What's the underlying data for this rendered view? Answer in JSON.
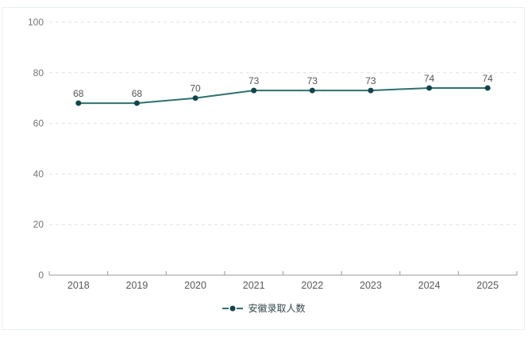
{
  "panel": {
    "background": "#ffffff",
    "border_color": "#e9f1f3"
  },
  "chart_data": {
    "type": "line",
    "title": "",
    "categories": [
      "2018",
      "2019",
      "2020",
      "2021",
      "2022",
      "2023",
      "2024",
      "2025"
    ],
    "series": [
      {
        "name": "安徽录取人数",
        "values": [
          68,
          68,
          70,
          73,
          73,
          73,
          74,
          74
        ]
      }
    ],
    "point_labels": [
      68,
      68,
      70,
      73,
      73,
      73,
      74,
      74
    ],
    "xlabel": "",
    "ylabel": "",
    "ylim": [
      0,
      100
    ],
    "yticks": [
      0,
      20,
      40,
      60,
      80,
      100
    ],
    "grid": "horizontal-dashed",
    "legend_position": "bottom-center",
    "colors": {
      "line": "#2f706c",
      "point": "#11454b",
      "gridline": "#e2e2e2",
      "axis_line": "#999999",
      "axis_tick": "#999999",
      "y_label": "#767676",
      "x_label": "#595959",
      "value_label": "#555555",
      "legend_text": "#33474a"
    }
  },
  "legend": {
    "marker": "line-dot-icon",
    "label": "安徽录取人数"
  }
}
